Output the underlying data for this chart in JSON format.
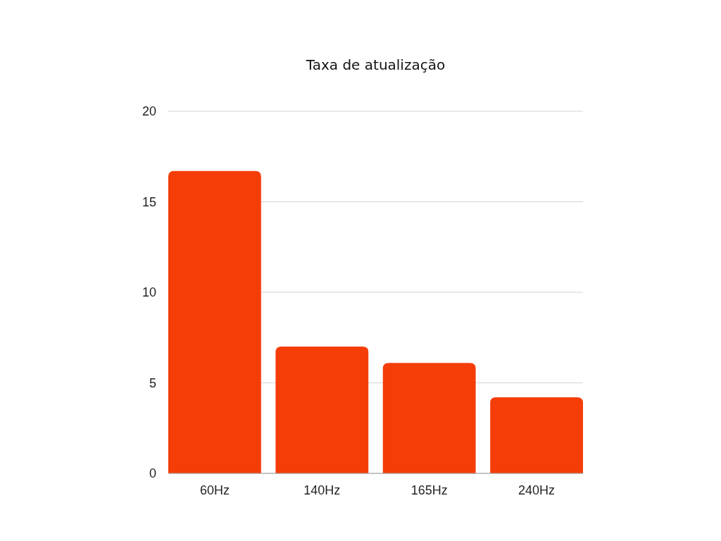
{
  "chart_data": {
    "type": "bar",
    "title": "Taxa de atualização",
    "categories": [
      "60Hz",
      "140Hz",
      "165Hz",
      "240Hz"
    ],
    "values": [
      16.7,
      7.0,
      6.1,
      4.2
    ],
    "color": "#f53d08",
    "ylim": [
      0,
      20
    ],
    "yticks": [
      0,
      5,
      10,
      15,
      20
    ],
    "grid": "y"
  }
}
